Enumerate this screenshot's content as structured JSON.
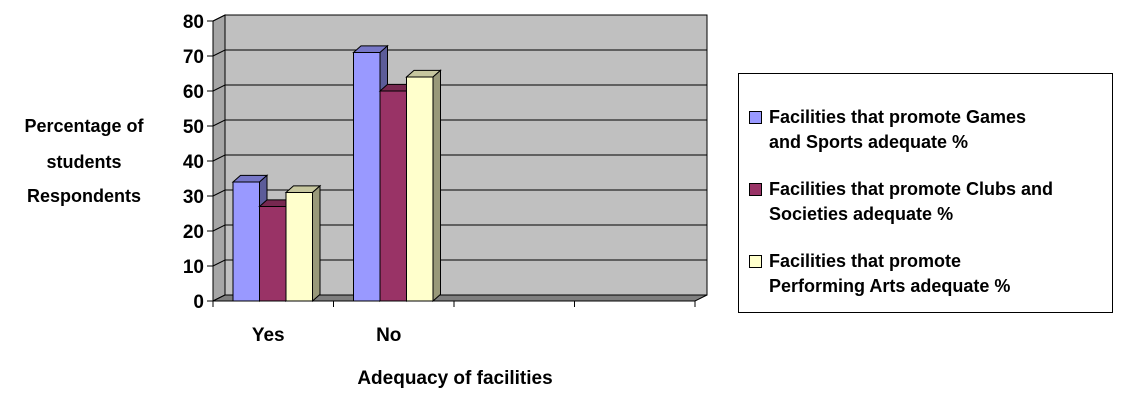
{
  "chart_data": {
    "type": "bar",
    "title": "",
    "xlabel": "Adequacy of facilities",
    "ylabel_lines": [
      "Percentage of",
      "students",
      "Respondents"
    ],
    "categories": [
      "Yes",
      "No",
      "",
      ""
    ],
    "series": [
      {
        "name": "Facilities that promote Games and Sports adequate %",
        "name_lines": [
          "Facilities that promote Games",
          "and Sports adequate %"
        ],
        "color": "#9999ff",
        "values": [
          34,
          71,
          null,
          null
        ]
      },
      {
        "name": "Facilities that promote Clubs and Societies adequate %",
        "name_lines": [
          "Facilities that promote Clubs and",
          "Societies adequate %"
        ],
        "color": "#993366",
        "values": [
          27,
          60,
          null,
          null
        ]
      },
      {
        "name": "Facilities that promote Performing Arts adequate %",
        "name_lines": [
          "Facilities that promote",
          "Performing Arts adequate %"
        ],
        "color": "#ffffcc",
        "values": [
          31,
          64,
          null,
          null
        ]
      }
    ],
    "ylim": [
      0,
      80
    ],
    "yticks": [
      0,
      10,
      20,
      30,
      40,
      50,
      60,
      70,
      80
    ],
    "grid": true,
    "legend_position": "right",
    "plot_background": "#c0c0c0"
  }
}
